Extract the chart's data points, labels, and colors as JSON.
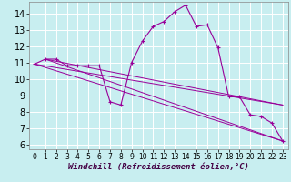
{
  "xlabel": "Windchill (Refroidissement éolien,°C)",
  "background_color": "#c8eef0",
  "grid_color": "#ffffff",
  "line_color": "#990099",
  "xlim": [
    -0.5,
    23.5
  ],
  "ylim": [
    5.7,
    14.7
  ],
  "yticks": [
    6,
    7,
    8,
    9,
    10,
    11,
    12,
    13,
    14
  ],
  "xticks": [
    0,
    1,
    2,
    3,
    4,
    5,
    6,
    7,
    8,
    9,
    10,
    11,
    12,
    13,
    14,
    15,
    16,
    17,
    18,
    19,
    20,
    21,
    22,
    23
  ],
  "main_series": {
    "x": [
      0,
      1,
      2,
      3,
      4,
      5,
      6,
      7,
      8,
      9,
      10,
      11,
      12,
      13,
      14,
      15,
      16,
      17,
      18,
      19,
      20,
      21,
      22,
      23
    ],
    "y": [
      10.9,
      11.2,
      11.2,
      10.8,
      10.8,
      10.8,
      10.8,
      8.6,
      8.4,
      11.0,
      12.3,
      13.2,
      13.5,
      14.1,
      14.5,
      13.2,
      13.3,
      11.9,
      8.9,
      8.9,
      7.8,
      7.7,
      7.3,
      6.2
    ]
  },
  "straight_lines": [
    {
      "x": [
        0,
        23
      ],
      "y": [
        10.9,
        6.2
      ]
    },
    {
      "x": [
        1,
        23
      ],
      "y": [
        11.2,
        6.2
      ]
    },
    {
      "x": [
        1,
        23
      ],
      "y": [
        11.2,
        8.4
      ]
    },
    {
      "x": [
        0,
        23
      ],
      "y": [
        10.9,
        8.4
      ]
    }
  ],
  "font_size_xlabel": 6.5,
  "font_size_ytick": 7,
  "font_size_xtick": 5.5
}
